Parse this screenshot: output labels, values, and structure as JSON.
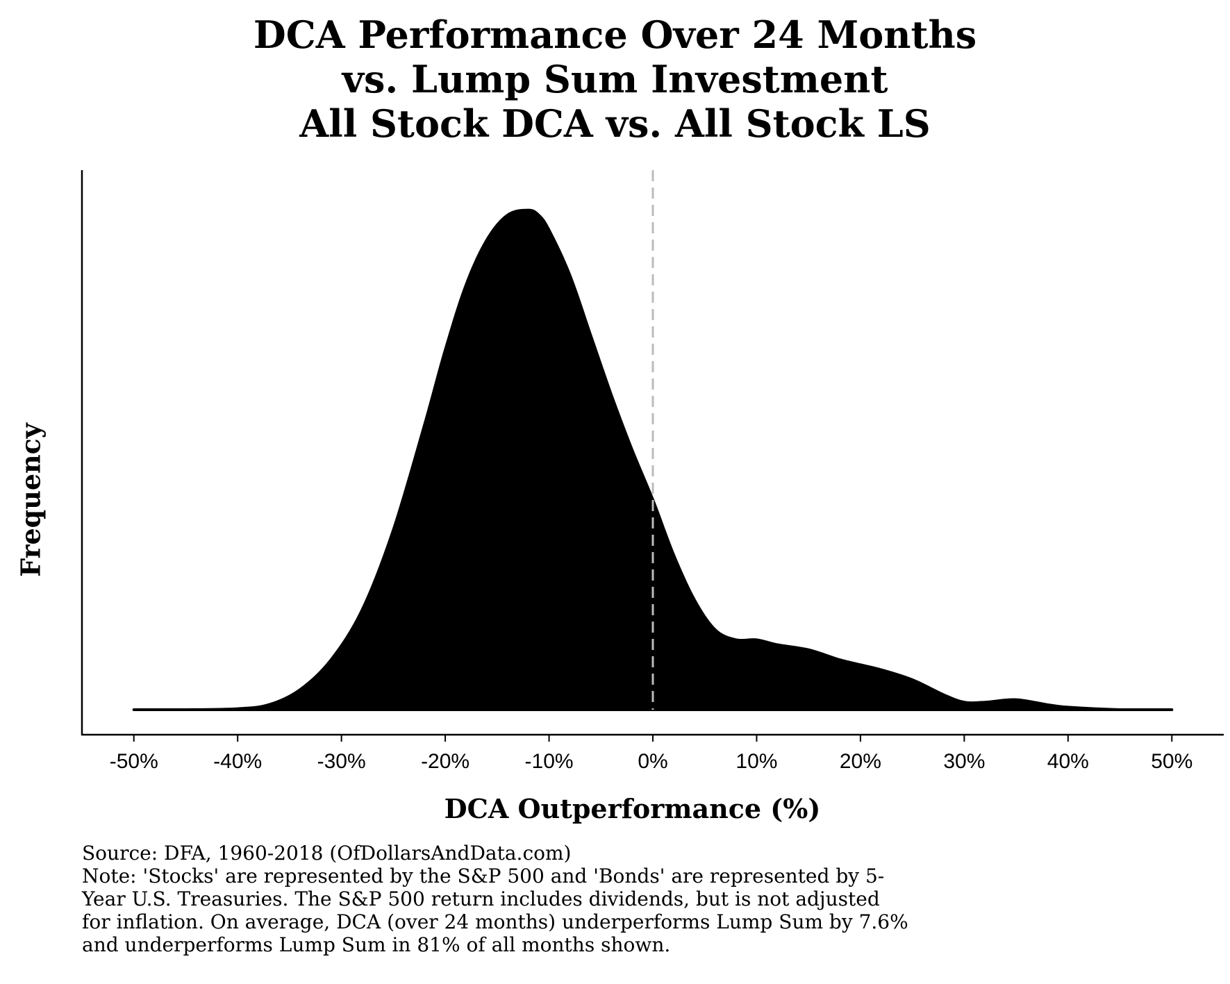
{
  "chart_data": {
    "type": "area",
    "title_lines": [
      "DCA Performance Over 24 Months",
      "vs. Lump Sum Investment",
      "All Stock DCA vs. All Stock LS"
    ],
    "xlabel": "DCA Outperformance (%)",
    "ylabel": "Frequency",
    "xlim": [
      -55,
      55
    ],
    "ylim": [
      -0.05,
      1.08
    ],
    "x_ticks": [
      -50,
      -40,
      -30,
      -20,
      -10,
      0,
      10,
      20,
      30,
      40,
      50
    ],
    "x_tick_labels": [
      "-50%",
      "-40%",
      "-30%",
      "-20%",
      "-10%",
      "0%",
      "10%",
      "20%",
      "30%",
      "40%",
      "50%"
    ],
    "reference_line": {
      "x": 0,
      "style": "dashed",
      "color": "#bbbbbb"
    },
    "fill_color": "#000000",
    "grid": false,
    "legend": "none",
    "series": [
      {
        "x": [
          -50,
          -45,
          -40,
          -37,
          -34,
          -31,
          -28,
          -25,
          -22,
          -20,
          -18,
          -16,
          -14,
          -12,
          -11,
          -10,
          -8,
          -6,
          -4,
          -2,
          0,
          2,
          4,
          6,
          8,
          10,
          12,
          15,
          18,
          20,
          22,
          25,
          28,
          30,
          32,
          35,
          38,
          40,
          45,
          50
        ],
        "y": [
          0,
          0,
          0.002,
          0.01,
          0.04,
          0.1,
          0.2,
          0.36,
          0.57,
          0.72,
          0.85,
          0.94,
          0.99,
          1.0,
          0.99,
          0.96,
          0.87,
          0.75,
          0.63,
          0.52,
          0.42,
          0.31,
          0.22,
          0.16,
          0.14,
          0.14,
          0.13,
          0.12,
          0.1,
          0.09,
          0.08,
          0.06,
          0.03,
          0.015,
          0.015,
          0.02,
          0.01,
          0.005,
          0,
          0
        ]
      }
    ]
  },
  "footer": {
    "source": "Source:  DFA, 1960-2018 (OfDollarsAndData.com)",
    "note_lines": [
      "Note: 'Stocks' are represented by the S&P 500 and 'Bonds' are represented by 5-",
      "Year U.S. Treasuries. The S&P 500 return includes dividends, but is not adjusted",
      "for inflation. On average, DCA (over 24 months) underperforms Lump Sum by 7.6%",
      "and underperforms Lump Sum in 81% of all months shown."
    ]
  }
}
